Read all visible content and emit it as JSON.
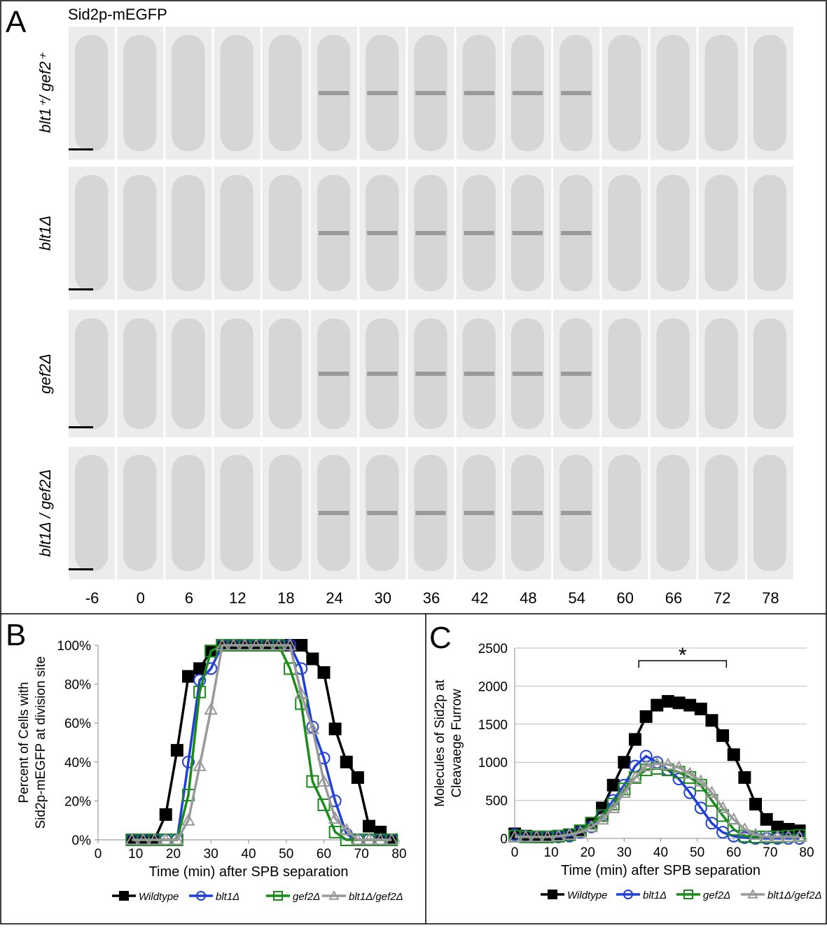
{
  "panel_a": {
    "letter": "A",
    "title": "Sid2p-mEGFP",
    "rows": [
      "blt1⁺/ gef2⁺",
      "blt1Δ",
      "gef2Δ",
      "blt1Δ / gef2Δ"
    ],
    "times": [
      "-6",
      "0",
      "6",
      "12",
      "18",
      "24",
      "30",
      "36",
      "42",
      "48",
      "54",
      "60",
      "66",
      "72",
      "78"
    ]
  },
  "chart_data": [
    {
      "type": "line",
      "letter": "B",
      "xlabel": "Time (min) after SPB separation",
      "ylabel": [
        "Percent of Cells with",
        "Sid2p-mEGFP at division site"
      ],
      "xlim": [
        0,
        80
      ],
      "xticks": [
        0,
        10,
        20,
        30,
        40,
        50,
        60,
        70,
        80
      ],
      "ylim": [
        0,
        100
      ],
      "yticks": [
        {
          "value": 0,
          "label": "0%"
        },
        {
          "value": 20,
          "label": "20%"
        },
        {
          "value": 40,
          "label": "40%"
        },
        {
          "value": 60,
          "label": "60%"
        },
        {
          "value": 80,
          "label": "80%"
        },
        {
          "value": 100,
          "label": "100%"
        }
      ],
      "grid": false,
      "series": [
        {
          "name": "Wildtype",
          "color": "#000000",
          "marker": "square",
          "filled": true,
          "x": [
            9,
            12,
            15,
            18,
            21,
            24,
            27,
            30,
            33,
            36,
            39,
            42,
            45,
            48,
            51,
            54,
            57,
            60,
            63,
            66,
            69,
            72,
            75,
            78
          ],
          "values": [
            0,
            0,
            0,
            13,
            46,
            84,
            88,
            97,
            100,
            100,
            100,
            100,
            100,
            100,
            100,
            100,
            93,
            86,
            57,
            40,
            32,
            7,
            4,
            0
          ]
        },
        {
          "name": "blt1Δ",
          "color": "#1f3fd6",
          "marker": "circle",
          "filled": false,
          "x": [
            9,
            12,
            15,
            18,
            21,
            24,
            27,
            30,
            33,
            36,
            39,
            42,
            45,
            48,
            51,
            54,
            57,
            60,
            63,
            66,
            69,
            72,
            75,
            78
          ],
          "values": [
            0,
            0,
            0,
            0,
            0,
            40,
            82,
            88,
            100,
            100,
            100,
            100,
            100,
            100,
            100,
            88,
            58,
            42,
            20,
            3,
            0,
            0,
            0,
            0
          ]
        },
        {
          "name": "gef2Δ",
          "color": "#1a8a1a",
          "marker": "square",
          "filled": false,
          "x": [
            9,
            12,
            15,
            18,
            21,
            24,
            27,
            30,
            33,
            36,
            39,
            42,
            45,
            48,
            51,
            54,
            57,
            60,
            63,
            66,
            69,
            72,
            75,
            78
          ],
          "values": [
            0,
            0,
            0,
            0,
            0,
            23,
            76,
            97,
            100,
            100,
            100,
            100,
            100,
            100,
            88,
            70,
            30,
            18,
            4,
            0,
            0,
            0,
            0,
            0
          ]
        },
        {
          "name": "blt1Δ/gef2Δ",
          "color": "#999999",
          "marker": "triangle",
          "filled": false,
          "x": [
            9,
            12,
            15,
            18,
            21,
            24,
            27,
            30,
            33,
            36,
            39,
            42,
            45,
            48,
            51,
            54,
            57,
            60,
            63,
            66,
            69,
            72,
            75,
            78
          ],
          "values": [
            0,
            0,
            0,
            0,
            0,
            10,
            38,
            67,
            100,
            100,
            100,
            100,
            100,
            100,
            100,
            75,
            57,
            30,
            11,
            5,
            0,
            0,
            0,
            0
          ]
        }
      ]
    },
    {
      "type": "line",
      "letter": "C",
      "xlabel": "Time (min) after SPB separation",
      "ylabel": [
        "Molecules of Sid2p at",
        "Cleavaege Furrow"
      ],
      "xlim": [
        0,
        80
      ],
      "xticks": [
        0,
        10,
        20,
        30,
        40,
        50,
        60,
        70,
        80
      ],
      "ylim": [
        0,
        2500
      ],
      "yticks": [
        0,
        500,
        1000,
        1500,
        2000,
        2500
      ],
      "grid": true,
      "annotation": "*",
      "bracket": [
        34,
        58
      ],
      "series": [
        {
          "name": "Wildtype",
          "color": "#000000",
          "marker": "square",
          "filled": true,
          "x": [
            0,
            3,
            6,
            9,
            12,
            15,
            18,
            21,
            24,
            27,
            30,
            33,
            36,
            39,
            42,
            45,
            48,
            51,
            54,
            57,
            60,
            63,
            66,
            69,
            72,
            75,
            78
          ],
          "values": [
            60,
            30,
            20,
            20,
            30,
            50,
            100,
            200,
            400,
            700,
            1000,
            1300,
            1600,
            1750,
            1800,
            1780,
            1750,
            1700,
            1550,
            1350,
            1100,
            800,
            450,
            250,
            150,
            120,
            100
          ]
        },
        {
          "name": "blt1Δ",
          "color": "#1f3fd6",
          "marker": "circle",
          "filled": false,
          "x": [
            0,
            3,
            6,
            9,
            12,
            15,
            18,
            21,
            24,
            27,
            30,
            33,
            36,
            39,
            42,
            45,
            48,
            51,
            54,
            57,
            60,
            63,
            66,
            69,
            72,
            75,
            78
          ],
          "values": [
            50,
            30,
            20,
            20,
            20,
            30,
            80,
            150,
            300,
            500,
            700,
            950,
            1080,
            1000,
            900,
            780,
            600,
            400,
            200,
            80,
            30,
            10,
            0,
            0,
            0,
            0,
            0
          ]
        },
        {
          "name": "gef2Δ",
          "color": "#1a8a1a",
          "marker": "square",
          "filled": false,
          "x": [
            0,
            3,
            6,
            9,
            12,
            15,
            18,
            21,
            24,
            27,
            30,
            33,
            36,
            39,
            42,
            45,
            48,
            51,
            54,
            57,
            60,
            63,
            66,
            69,
            72,
            75,
            78
          ],
          "values": [
            30,
            20,
            20,
            20,
            30,
            50,
            100,
            200,
            300,
            450,
            650,
            800,
            900,
            920,
            900,
            870,
            800,
            700,
            500,
            300,
            120,
            30,
            20,
            20,
            20,
            30,
            40
          ]
        },
        {
          "name": "blt1Δ/gef2Δ",
          "color": "#999999",
          "marker": "triangle",
          "filled": false,
          "x": [
            0,
            3,
            6,
            9,
            12,
            15,
            18,
            21,
            24,
            27,
            30,
            33,
            36,
            39,
            42,
            45,
            48,
            51,
            54,
            57,
            60,
            63,
            66,
            69,
            72,
            75,
            78
          ],
          "values": [
            20,
            20,
            20,
            20,
            30,
            50,
            80,
            150,
            250,
            400,
            600,
            800,
            950,
            980,
            970,
            930,
            850,
            750,
            600,
            400,
            250,
            120,
            50,
            20,
            20,
            20,
            20
          ]
        }
      ]
    }
  ]
}
